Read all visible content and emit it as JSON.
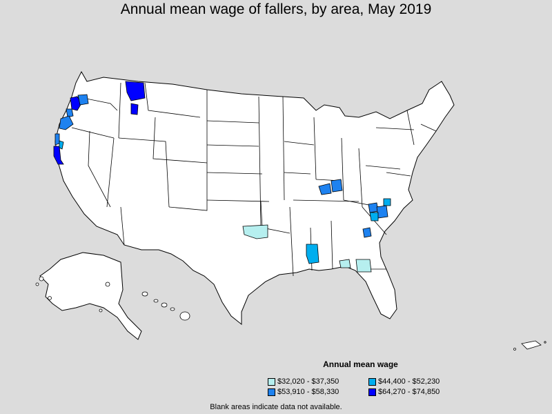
{
  "title": "Annual mean wage of fallers, by area, May 2019",
  "legend": {
    "title": "Annual mean wage",
    "items": [
      {
        "label": "$32,020 - $37,350",
        "color": "#b6efef"
      },
      {
        "label": "$44,400 - $52,230",
        "color": "#00aeef"
      },
      {
        "label": "$53,910 - $58,330",
        "color": "#1e82f0"
      },
      {
        "label": "$64,270 - $74,850",
        "color": "#0000ff"
      }
    ]
  },
  "footnote": "Blank areas indicate data not available.",
  "colors": {
    "background": "#dcdcdc",
    "land": "#ffffff",
    "border": "#000000"
  }
}
